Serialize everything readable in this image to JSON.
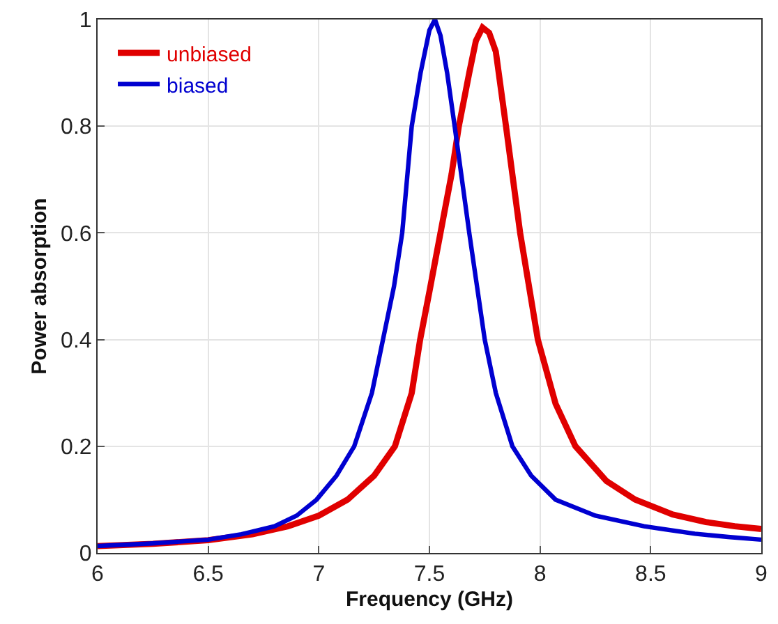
{
  "chart_data": {
    "type": "line",
    "xlabel": "Frequency (GHz)",
    "ylabel": "Power absorption",
    "xlim": [
      6,
      9
    ],
    "ylim": [
      0,
      1
    ],
    "xticks": [
      6,
      6.5,
      7,
      7.5,
      8,
      8.5,
      9
    ],
    "yticks": [
      0,
      0.2,
      0.4,
      0.6,
      0.8,
      1
    ],
    "grid": true,
    "legend": "top left",
    "line_style": "solid",
    "marker": "none",
    "series": [
      {
        "name": "unbiased",
        "color": "#e00000",
        "x": [
          6.0,
          6.25,
          6.5,
          6.7,
          6.86,
          7.0,
          7.13,
          7.25,
          7.344,
          7.42,
          7.458,
          7.5,
          7.55,
          7.6,
          7.633,
          7.68,
          7.71,
          7.74,
          7.77,
          7.8,
          7.846,
          7.91,
          7.99,
          8.07,
          8.16,
          8.3,
          8.43,
          8.6,
          8.75,
          8.88,
          9.0
        ],
        "values": [
          0.013,
          0.017,
          0.024,
          0.035,
          0.05,
          0.07,
          0.1,
          0.145,
          0.2,
          0.3,
          0.4,
          0.49,
          0.6,
          0.71,
          0.8,
          0.9,
          0.96,
          0.985,
          0.975,
          0.94,
          0.8,
          0.6,
          0.4,
          0.28,
          0.2,
          0.135,
          0.1,
          0.072,
          0.058,
          0.05,
          0.045
        ]
      },
      {
        "name": "biased",
        "color": "#0000d0",
        "x": [
          6.0,
          6.25,
          6.5,
          6.65,
          6.8,
          6.9,
          6.99,
          7.08,
          7.16,
          7.24,
          7.29,
          7.34,
          7.377,
          7.42,
          7.46,
          7.5,
          7.525,
          7.55,
          7.58,
          7.614,
          7.68,
          7.75,
          7.8,
          7.875,
          7.96,
          8.07,
          8.25,
          8.47,
          8.7,
          8.85,
          9.0
        ],
        "values": [
          0.013,
          0.018,
          0.025,
          0.035,
          0.05,
          0.07,
          0.1,
          0.145,
          0.2,
          0.3,
          0.4,
          0.5,
          0.6,
          0.8,
          0.9,
          0.98,
          1.0,
          0.97,
          0.9,
          0.8,
          0.6,
          0.4,
          0.3,
          0.2,
          0.145,
          0.1,
          0.07,
          0.05,
          0.036,
          0.03,
          0.025
        ]
      }
    ]
  }
}
